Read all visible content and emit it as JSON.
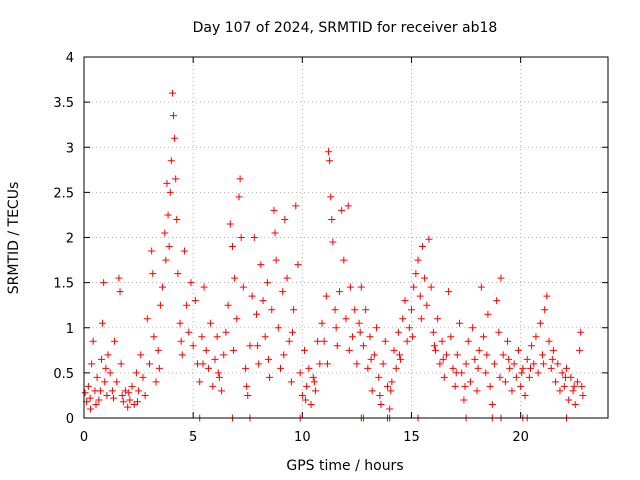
{
  "chart_data": {
    "type": "scatter",
    "title": "Day 107 of 2024, SRMTID for receiver ab18",
    "xlabel": "GPS time / hours",
    "ylabel": "SRMTID / TECUs",
    "xlim": [
      0,
      24
    ],
    "ylim": [
      0,
      4
    ],
    "xticks": [
      0,
      5,
      10,
      15,
      20
    ],
    "xtick_labels": [
      "0",
      "5",
      "10",
      "15",
      "20"
    ],
    "yticks": [
      0,
      0.5,
      1,
      1.5,
      2,
      2.5,
      3,
      3.5,
      4
    ],
    "ytick_labels": [
      "0",
      "0.5",
      "1",
      "1.5",
      "2",
      "2.5",
      "3",
      "3.5",
      "4"
    ],
    "grid": true,
    "marker": "+",
    "series": [
      {
        "name": "ab18",
        "color": "#ff0000",
        "points": [
          [
            0.05,
            0.28
          ],
          [
            0.12,
            0.18
          ],
          [
            0.2,
            0.35
          ],
          [
            0.28,
            0.22
          ],
          [
            0.35,
            0.6
          ],
          [
            0.42,
            0.85
          ],
          [
            0.5,
            0.3
          ],
          [
            0.55,
            0.15
          ],
          [
            0.6,
            0.45
          ],
          [
            0.68,
            0.2
          ],
          [
            0.75,
            0.3
          ],
          [
            0.8,
            0.65
          ],
          [
            0.85,
            1.05
          ],
          [
            0.9,
            1.5
          ],
          [
            0.95,
            0.4
          ],
          [
            1.0,
            0.55
          ],
          [
            1.05,
            0.25
          ],
          [
            1.1,
            0.7
          ],
          [
            1.2,
            0.5
          ],
          [
            1.3,
            0.3
          ],
          [
            1.4,
            0.85
          ],
          [
            1.5,
            0.4
          ],
          [
            1.6,
            1.55
          ],
          [
            1.65,
            1.4
          ],
          [
            1.7,
            0.6
          ],
          [
            1.75,
            0.25
          ],
          [
            1.8,
            0.18
          ],
          [
            1.9,
            0.3
          ],
          [
            2.0,
            0.12
          ],
          [
            2.1,
            0.2
          ],
          [
            2.2,
            0.35
          ],
          [
            2.3,
            0.15
          ],
          [
            2.4,
            0.5
          ],
          [
            2.5,
            0.3
          ],
          [
            2.6,
            0.7
          ],
          [
            2.7,
            0.45
          ],
          [
            2.8,
            0.25
          ],
          [
            2.9,
            1.1
          ],
          [
            3.0,
            0.6
          ],
          [
            3.1,
            1.85
          ],
          [
            3.15,
            1.6
          ],
          [
            3.2,
            0.9
          ],
          [
            3.3,
            0.4
          ],
          [
            3.4,
            0.75
          ],
          [
            3.5,
            1.25
          ],
          [
            3.6,
            1.45
          ],
          [
            3.7,
            2.05
          ],
          [
            3.75,
            1.75
          ],
          [
            3.8,
            2.6
          ],
          [
            3.85,
            2.25
          ],
          [
            3.9,
            1.9
          ],
          [
            3.95,
            2.5
          ],
          [
            4.0,
            2.85
          ],
          [
            4.05,
            3.6
          ],
          [
            4.1,
            3.35
          ],
          [
            4.15,
            3.1
          ],
          [
            4.2,
            2.65
          ],
          [
            4.25,
            2.2
          ],
          [
            4.3,
            1.6
          ],
          [
            4.4,
            1.05
          ],
          [
            4.5,
            0.7
          ],
          [
            4.6,
            1.85
          ],
          [
            4.7,
            1.25
          ],
          [
            4.8,
            0.95
          ],
          [
            4.9,
            1.5
          ],
          [
            5.0,
            0.8
          ],
          [
            5.1,
            1.3
          ],
          [
            5.2,
            0.6
          ],
          [
            5.3,
            0.4
          ],
          [
            5.4,
            0.9
          ],
          [
            5.5,
            1.45
          ],
          [
            5.6,
            0.75
          ],
          [
            5.7,
            0.55
          ],
          [
            5.8,
            1.05
          ],
          [
            5.9,
            0.35
          ],
          [
            6.0,
            0.65
          ],
          [
            6.1,
            0.9
          ],
          [
            6.2,
            0.45
          ],
          [
            6.3,
            0.3
          ],
          [
            6.4,
            0.7
          ],
          [
            6.5,
            0.95
          ],
          [
            6.6,
            1.25
          ],
          [
            6.7,
            2.15
          ],
          [
            6.8,
            1.9
          ],
          [
            6.9,
            1.55
          ],
          [
            7.0,
            1.1
          ],
          [
            7.1,
            2.45
          ],
          [
            7.15,
            2.65
          ],
          [
            7.2,
            2.0
          ],
          [
            7.3,
            1.45
          ],
          [
            7.4,
            0.55
          ],
          [
            7.5,
            0.25
          ],
          [
            7.6,
            0.8
          ],
          [
            7.7,
            1.35
          ],
          [
            7.8,
            2.0
          ],
          [
            7.9,
            1.15
          ],
          [
            8.0,
            0.6
          ],
          [
            8.1,
            1.7
          ],
          [
            8.2,
            1.3
          ],
          [
            8.3,
            0.9
          ],
          [
            8.4,
            1.5
          ],
          [
            8.5,
            0.45
          ],
          [
            8.6,
            1.2
          ],
          [
            8.7,
            2.3
          ],
          [
            8.75,
            2.05
          ],
          [
            8.8,
            1.75
          ],
          [
            8.9,
            1.0
          ],
          [
            9.0,
            0.55
          ],
          [
            9.1,
            1.4
          ],
          [
            9.2,
            2.2
          ],
          [
            9.3,
            1.55
          ],
          [
            9.4,
            0.85
          ],
          [
            9.5,
            0.4
          ],
          [
            9.6,
            1.2
          ],
          [
            9.7,
            2.35
          ],
          [
            9.8,
            1.7
          ],
          [
            9.9,
            0.5
          ],
          [
            10.0,
            0.25
          ],
          [
            10.1,
            0.75
          ],
          [
            10.2,
            0.35
          ],
          [
            10.3,
            0.55
          ],
          [
            10.4,
            0.15
          ],
          [
            10.5,
            0.45
          ],
          [
            10.6,
            0.3
          ],
          [
            10.7,
            0.85
          ],
          [
            10.8,
            0.6
          ],
          [
            10.9,
            1.05
          ],
          [
            11.0,
            0.85
          ],
          [
            11.1,
            1.35
          ],
          [
            11.2,
            2.95
          ],
          [
            11.25,
            2.85
          ],
          [
            11.3,
            2.45
          ],
          [
            11.35,
            2.2
          ],
          [
            11.4,
            1.95
          ],
          [
            11.5,
            1.2
          ],
          [
            11.6,
            0.8
          ],
          [
            11.7,
            1.4
          ],
          [
            11.8,
            2.3
          ],
          [
            11.9,
            1.75
          ],
          [
            12.0,
            1.1
          ],
          [
            12.1,
            2.35
          ],
          [
            12.2,
            1.45
          ],
          [
            12.3,
            0.9
          ],
          [
            12.4,
            1.2
          ],
          [
            12.5,
            0.6
          ],
          [
            12.6,
            1.05
          ],
          [
            12.7,
            1.45
          ],
          [
            12.8,
            0.8
          ],
          [
            12.9,
            1.2
          ],
          [
            13.0,
            0.55
          ],
          [
            13.1,
            0.9
          ],
          [
            13.2,
            0.3
          ],
          [
            13.3,
            0.7
          ],
          [
            13.4,
            1.0
          ],
          [
            13.5,
            0.45
          ],
          [
            13.6,
            0.15
          ],
          [
            13.7,
            0.6
          ],
          [
            13.8,
            0.85
          ],
          [
            13.9,
            0.35
          ],
          [
            14.0,
            0.1
          ],
          [
            14.1,
            0.4
          ],
          [
            14.2,
            0.75
          ],
          [
            14.3,
            0.55
          ],
          [
            14.4,
            0.95
          ],
          [
            14.5,
            0.65
          ],
          [
            14.6,
            1.1
          ],
          [
            14.7,
            1.3
          ],
          [
            14.8,
            0.85
          ],
          [
            14.9,
            1.0
          ],
          [
            15.0,
            1.2
          ],
          [
            15.1,
            1.45
          ],
          [
            15.2,
            1.6
          ],
          [
            15.3,
            1.75
          ],
          [
            15.4,
            1.35
          ],
          [
            15.5,
            1.9
          ],
          [
            15.6,
            1.55
          ],
          [
            15.7,
            1.25
          ],
          [
            15.8,
            1.98
          ],
          [
            15.9,
            1.45
          ],
          [
            16.0,
            0.95
          ],
          [
            16.1,
            0.75
          ],
          [
            16.2,
            1.1
          ],
          [
            16.3,
            0.6
          ],
          [
            16.4,
            0.85
          ],
          [
            16.5,
            0.45
          ],
          [
            16.6,
            0.7
          ],
          [
            16.7,
            1.4
          ],
          [
            16.8,
            0.9
          ],
          [
            16.9,
            0.55
          ],
          [
            17.0,
            0.35
          ],
          [
            17.1,
            0.7
          ],
          [
            17.2,
            1.05
          ],
          [
            17.3,
            0.5
          ],
          [
            17.4,
            0.2
          ],
          [
            17.5,
            0.6
          ],
          [
            17.6,
            0.85
          ],
          [
            17.7,
            0.4
          ],
          [
            17.8,
            1.0
          ],
          [
            17.9,
            0.65
          ],
          [
            18.0,
            0.3
          ],
          [
            18.1,
            0.75
          ],
          [
            18.2,
            1.45
          ],
          [
            18.3,
            0.9
          ],
          [
            18.4,
            0.5
          ],
          [
            18.5,
            1.15
          ],
          [
            18.6,
            0.35
          ],
          [
            18.7,
            0.15
          ],
          [
            18.8,
            0.6
          ],
          [
            18.9,
            1.3
          ],
          [
            19.0,
            0.95
          ],
          [
            19.1,
            1.55
          ],
          [
            19.2,
            0.7
          ],
          [
            19.3,
            0.4
          ],
          [
            19.4,
            0.85
          ],
          [
            19.5,
            0.55
          ],
          [
            19.6,
            0.3
          ],
          [
            19.7,
            0.6
          ],
          [
            19.8,
            0.45
          ],
          [
            19.9,
            0.75
          ],
          [
            20.0,
            0.35
          ],
          [
            20.1,
            0.55
          ],
          [
            20.2,
            0.25
          ],
          [
            20.3,
            0.65
          ],
          [
            20.4,
            0.45
          ],
          [
            20.5,
            0.8
          ],
          [
            20.6,
            0.6
          ],
          [
            20.7,
            0.9
          ],
          [
            20.8,
            0.5
          ],
          [
            20.9,
            1.05
          ],
          [
            21.0,
            0.7
          ],
          [
            21.1,
            1.2
          ],
          [
            21.2,
            1.35
          ],
          [
            21.3,
            0.85
          ],
          [
            21.4,
            0.55
          ],
          [
            21.5,
            0.75
          ],
          [
            21.6,
            0.4
          ],
          [
            21.7,
            0.6
          ],
          [
            21.8,
            0.3
          ],
          [
            21.9,
            0.5
          ],
          [
            22.0,
            0.35
          ],
          [
            22.1,
            0.55
          ],
          [
            22.2,
            0.2
          ],
          [
            22.3,
            0.45
          ],
          [
            22.4,
            0.3
          ],
          [
            22.5,
            0.15
          ],
          [
            22.6,
            0.4
          ],
          [
            22.7,
            0.75
          ],
          [
            22.75,
            0.95
          ],
          [
            22.8,
            0.35
          ],
          [
            22.85,
            0.25
          ],
          [
            0.3,
            0.1
          ],
          [
            1.35,
            0.22
          ],
          [
            2.05,
            0.28
          ],
          [
            2.45,
            0.18
          ],
          [
            3.45,
            0.55
          ],
          [
            4.45,
            0.85
          ],
          [
            5.45,
            0.6
          ],
          [
            6.15,
            0.5
          ],
          [
            6.85,
            0.75
          ],
          [
            7.45,
            0.35
          ],
          [
            7.95,
            0.8
          ],
          [
            8.45,
            0.65
          ],
          [
            9.15,
            0.7
          ],
          [
            9.55,
            0.95
          ],
          [
            10.15,
            0.2
          ],
          [
            10.55,
            0.4
          ],
          [
            11.15,
            0.6
          ],
          [
            11.55,
            1.0
          ],
          [
            12.15,
            0.75
          ],
          [
            12.65,
            0.95
          ],
          [
            13.15,
            0.65
          ],
          [
            13.55,
            0.25
          ],
          [
            14.05,
            0.3
          ],
          [
            14.45,
            0.7
          ],
          [
            15.05,
            0.9
          ],
          [
            15.45,
            1.1
          ],
          [
            16.05,
            0.8
          ],
          [
            16.45,
            0.65
          ],
          [
            17.05,
            0.5
          ],
          [
            17.45,
            0.35
          ],
          [
            18.05,
            0.55
          ],
          [
            18.45,
            0.7
          ],
          [
            19.05,
            0.45
          ],
          [
            19.45,
            0.65
          ],
          [
            20.05,
            0.5
          ],
          [
            20.45,
            0.55
          ],
          [
            21.05,
            0.6
          ],
          [
            21.45,
            0.65
          ],
          [
            22.05,
            0.45
          ],
          [
            22.45,
            0.35
          ],
          [
            5.3,
            0.0
          ],
          [
            6.8,
            0.0
          ],
          [
            7.6,
            0.0
          ],
          [
            9.9,
            0.0
          ],
          [
            12.7,
            0.0
          ],
          [
            12.8,
            0.0
          ],
          [
            13.9,
            0.0
          ],
          [
            14.0,
            0.0
          ],
          [
            15.3,
            0.0
          ],
          [
            17.5,
            0.0
          ],
          [
            18.7,
            0.0
          ],
          [
            19.1,
            0.0
          ],
          [
            20.1,
            0.0
          ],
          [
            20.3,
            0.0
          ],
          [
            22.1,
            0.0
          ]
        ]
      }
    ]
  }
}
